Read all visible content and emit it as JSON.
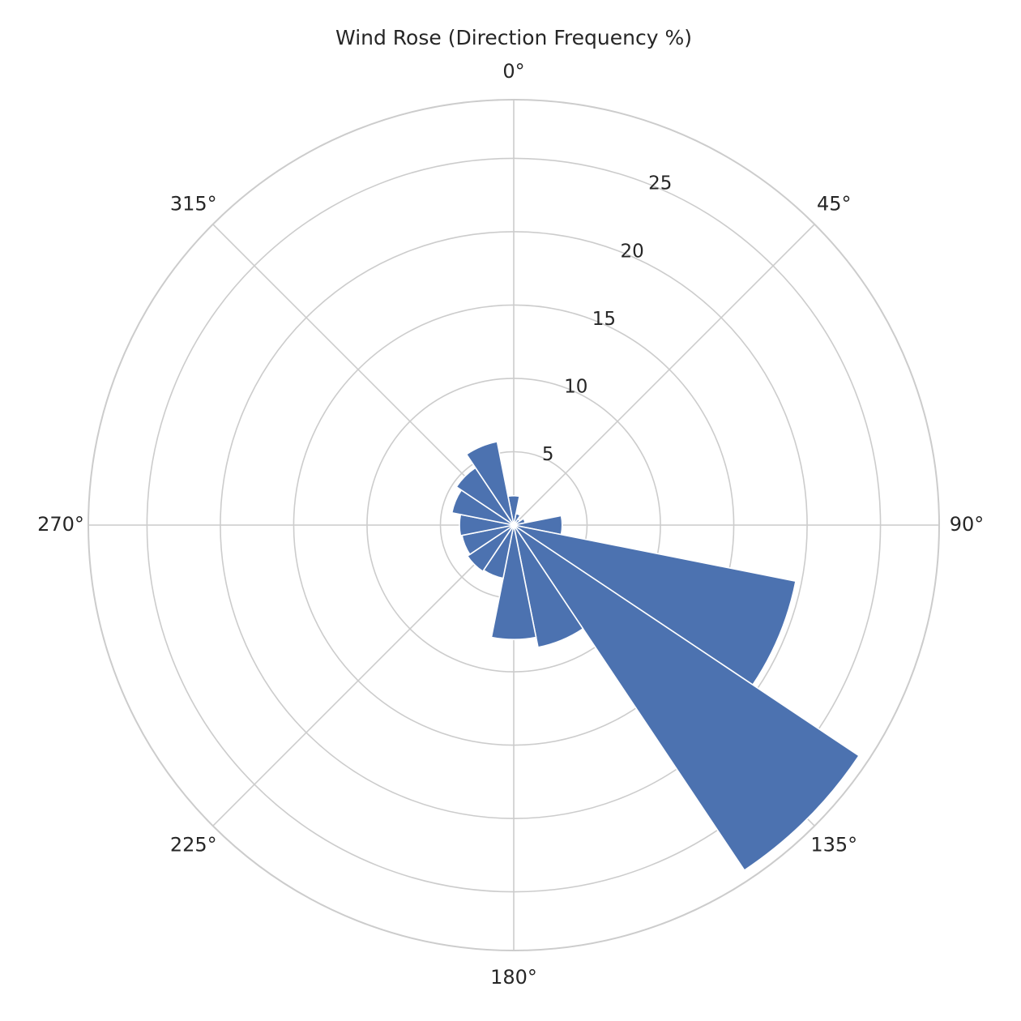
{
  "chart_data": {
    "type": "bar",
    "subtype": "polar",
    "title": "Wind Rose (Direction Frequency %)",
    "direction_unit": "degrees",
    "theta_zero_location": "N",
    "theta_direction": "clockwise",
    "bin_width_deg": 22.5,
    "directions": [
      0,
      22.5,
      45,
      67.5,
      90,
      112.5,
      135,
      157.5,
      180,
      202.5,
      225,
      247.5,
      270,
      292.5,
      315,
      337.5
    ],
    "values": [
      2.0,
      0.8,
      0.5,
      0.8,
      3.3,
      19.6,
      28.3,
      8.5,
      7.8,
      3.7,
      3.8,
      3.6,
      3.7,
      4.3,
      4.7,
      5.8
    ],
    "angular_tick_labels": [
      "0°",
      "45°",
      "90°",
      "135°",
      "180°",
      "225°",
      "270°",
      "315°"
    ],
    "radial_tick_labels": [
      "5",
      "10",
      "15",
      "20",
      "25"
    ],
    "radial_ticks": [
      5,
      10,
      15,
      20,
      25
    ],
    "ylim": [
      0,
      29
    ],
    "grid": true,
    "bar_color": "#4c72b0",
    "grid_color": "#cccccc"
  }
}
